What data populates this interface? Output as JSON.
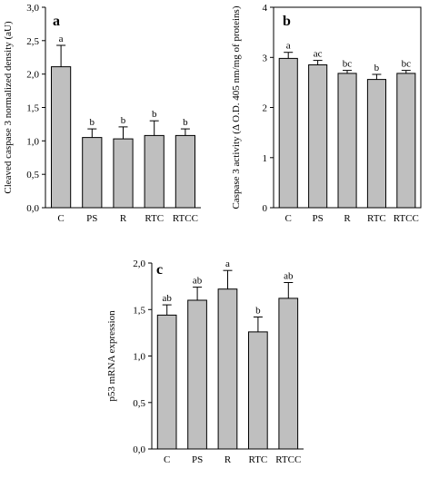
{
  "chart_data": [
    {
      "type": "bar",
      "panel": "a",
      "categories": [
        "C",
        "PS",
        "R",
        "RTC",
        "RTCC"
      ],
      "values": [
        2.11,
        1.05,
        1.03,
        1.08,
        1.08
      ],
      "errors": [
        0.32,
        0.13,
        0.18,
        0.22,
        0.1
      ],
      "significance": [
        "a",
        "b",
        "b",
        "b",
        "b"
      ],
      "ylabel": "Cleaved caspase 3 normalized density (aU)",
      "ylim": [
        0,
        3
      ],
      "yticks": [
        0,
        0.5,
        1,
        1.5,
        2,
        2.5,
        3
      ],
      "ytick_labels": [
        "0,0",
        "0,5",
        "1,0",
        "1,5",
        "2,0",
        "2,5",
        "3,0"
      ],
      "grid": false
    },
    {
      "type": "bar",
      "panel": "b",
      "categories": [
        "C",
        "PS",
        "R",
        "RTC",
        "RTCC"
      ],
      "values": [
        2.98,
        2.85,
        2.68,
        2.56,
        2.68
      ],
      "errors": [
        0.12,
        0.09,
        0.06,
        0.1,
        0.06
      ],
      "significance": [
        "a",
        "ac",
        "bc",
        "b",
        "bc"
      ],
      "ylabel": "Caspase 3 activity (Δ O.D. 405 nm/mg of proteins)",
      "ylim": [
        0,
        4
      ],
      "yticks": [
        0,
        1,
        2,
        3,
        4
      ],
      "ytick_labels": [
        "0",
        "1",
        "2",
        "3",
        "4"
      ],
      "grid": false
    },
    {
      "type": "bar",
      "panel": "c",
      "categories": [
        "C",
        "PS",
        "R",
        "RTC",
        "RTCC"
      ],
      "values": [
        1.44,
        1.6,
        1.72,
        1.26,
        1.62
      ],
      "errors": [
        0.11,
        0.14,
        0.2,
        0.16,
        0.17
      ],
      "significance": [
        "ab",
        "ab",
        "a",
        "b",
        "ab"
      ],
      "ylabel": "p53 mRNA expression",
      "ylim": [
        0,
        2
      ],
      "yticks": [
        0,
        0.5,
        1,
        1.5,
        2
      ],
      "ytick_labels": [
        "0,0",
        "0,5",
        "1,0",
        "1,5",
        "2,0"
      ],
      "grid": false
    }
  ]
}
